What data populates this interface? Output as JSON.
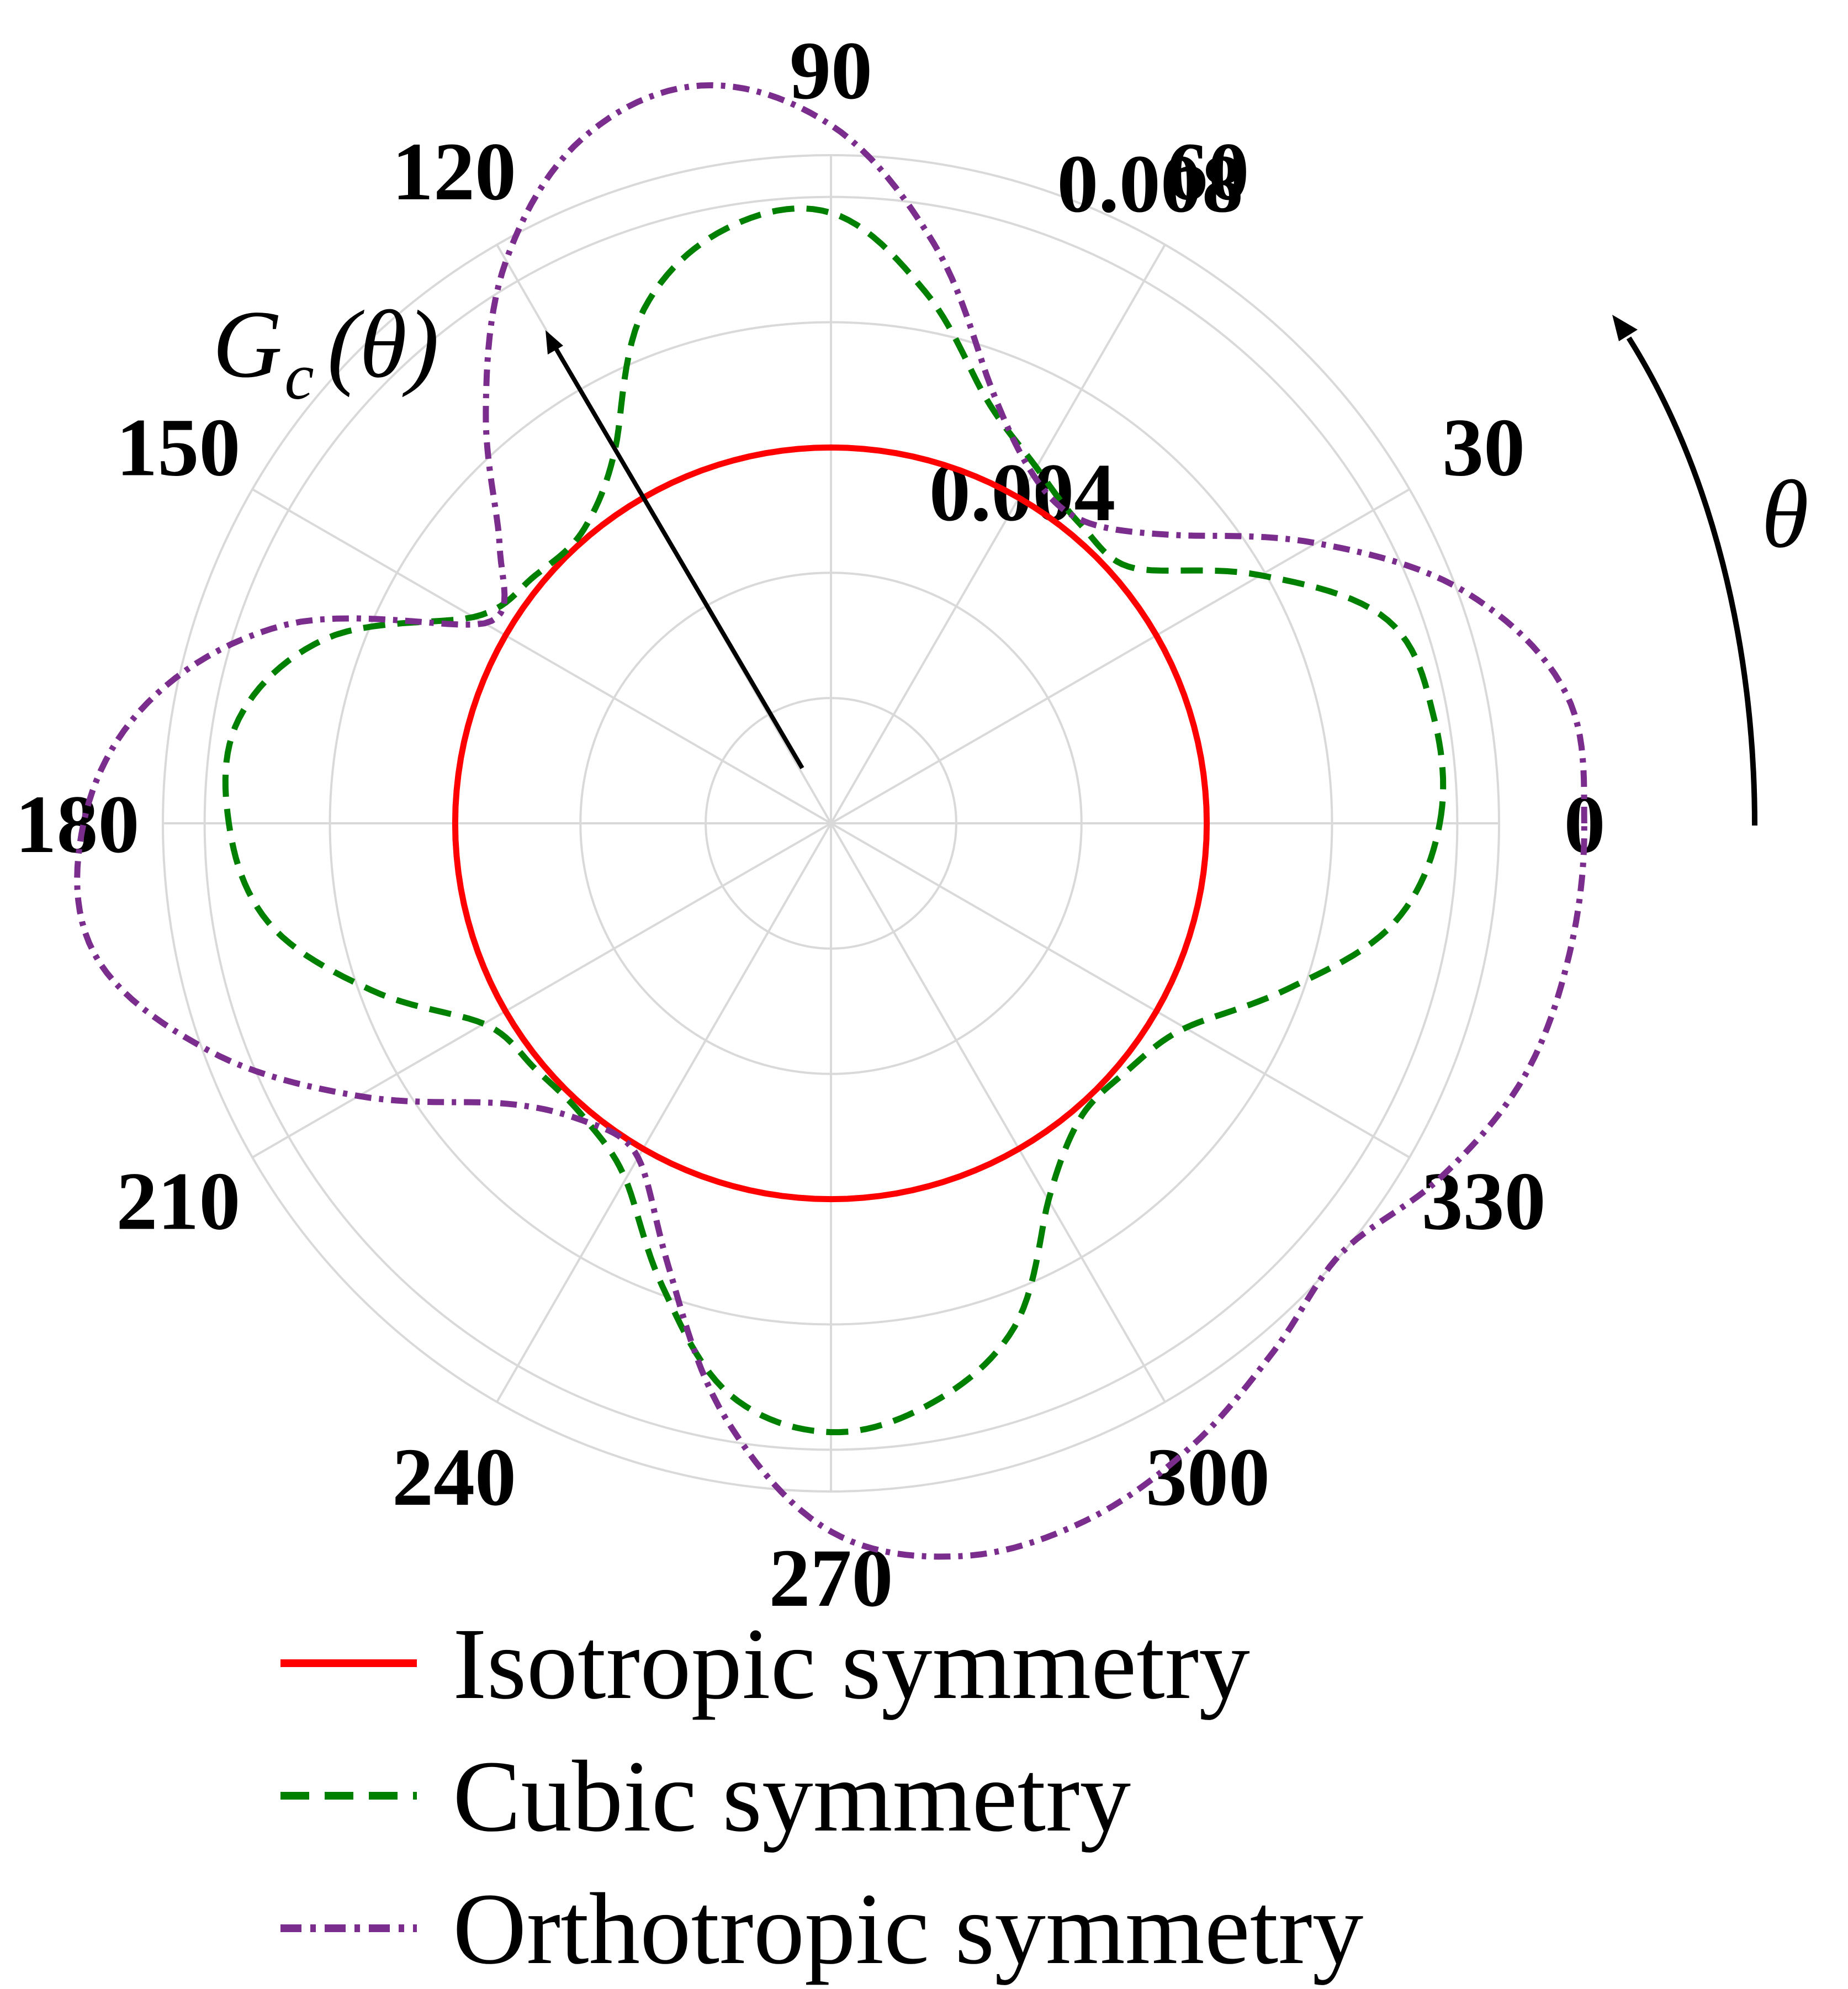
{
  "chart_data": {
    "type": "polar-line",
    "angle_unit": "degrees",
    "angular_ticks": [
      "0",
      "30",
      "60",
      "90",
      "120",
      "150",
      "180",
      "210",
      "240",
      "270",
      "300",
      "330"
    ],
    "radial_tick_labels": [
      "0.004",
      "0.008"
    ],
    "radial_max": 0.008,
    "radial_rings": [
      0.0015,
      0.003,
      0.0045,
      0.006,
      0.0075
    ],
    "grid": true,
    "theta_label": "θ",
    "radius_annotation": {
      "symbol": "G",
      "subscript": "c",
      "argument": "(θ)"
    },
    "colors": {
      "isotropic": "#ff0000",
      "cubic": "#008000",
      "orthotropic": "#7b2d8e",
      "grid": "#d9d9d9"
    },
    "series": [
      {
        "name": "Isotropic symmetry",
        "style": "solid",
        "color": "#ff0000",
        "theta": [
          0,
          30,
          60,
          90,
          120,
          150,
          180,
          210,
          240,
          270,
          300,
          330,
          360
        ],
        "r": [
          0.0045,
          0.0045,
          0.0045,
          0.0045,
          0.0045,
          0.0045,
          0.0045,
          0.0045,
          0.0045,
          0.0045,
          0.0045,
          0.0045,
          0.0045
        ]
      },
      {
        "name": "Cubic symmetry",
        "style": "dashed",
        "color": "#008000",
        "theta": [
          0,
          10,
          20,
          30,
          40,
          50,
          60,
          70,
          80,
          90,
          100,
          110,
          120,
          130,
          140,
          150,
          160,
          170,
          180,
          190,
          200,
          210,
          220,
          230,
          240,
          250,
          260,
          270,
          280,
          290,
          300,
          310,
          320,
          330,
          340,
          350,
          360
        ],
        "r": [
          0.00729,
          0.00733,
          0.0071,
          0.00594,
          0.00475,
          0.00466,
          0.00492,
          0.00542,
          0.00647,
          0.00731,
          0.00723,
          0.00655,
          0.00517,
          0.0046,
          0.00462,
          0.00494,
          0.00645,
          0.0072,
          0.00721,
          0.00684,
          0.00585,
          0.0048,
          0.0046,
          0.0046,
          0.00492,
          0.0059,
          0.00695,
          0.00729,
          0.00704,
          0.00642,
          0.00521,
          0.00463,
          0.00462,
          0.0049,
          0.00581,
          0.00685,
          0.00729
        ]
      },
      {
        "name": "Orthotropic symmetry",
        "style": "dashdot",
        "color": "#7b2d8e",
        "theta": [
          0,
          10,
          20,
          30,
          40,
          50,
          60,
          70,
          80,
          90,
          100,
          110,
          120,
          130,
          140,
          150,
          160,
          170,
          180,
          190,
          200,
          210,
          220,
          230,
          240,
          250,
          260,
          270,
          280,
          290,
          300,
          310,
          320,
          330,
          340,
          350,
          360
        ],
        "r": [
          0.00902,
          0.00894,
          0.00809,
          0.00671,
          0.00537,
          0.00472,
          0.00483,
          0.00558,
          0.00706,
          0.00836,
          0.00897,
          0.00872,
          0.00778,
          0.00643,
          0.00518,
          0.00479,
          0.00695,
          0.00831,
          0.00895,
          0.00896,
          0.00794,
          0.00653,
          0.00521,
          0.00464,
          0.00462,
          0.00567,
          0.00724,
          0.00848,
          0.00891,
          0.00889,
          0.00862,
          0.00825,
          0.00799,
          0.00845,
          0.00884,
          0.00898,
          0.00902
        ]
      }
    ],
    "legend": {
      "placement": "bottom",
      "entries": [
        "Isotropic symmetry",
        "Cubic symmetry",
        "Orthotropic symmetry"
      ]
    }
  }
}
